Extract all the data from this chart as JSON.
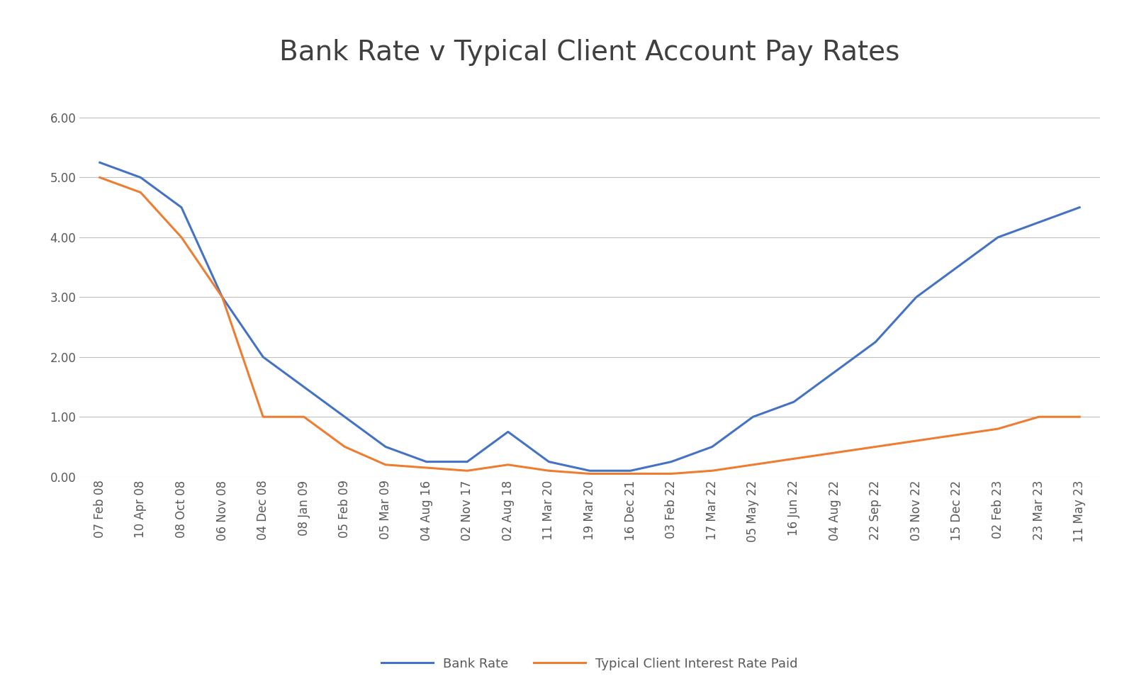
{
  "title": "Bank Rate v Typical Client Account Pay Rates",
  "x_labels": [
    "07 Feb 08",
    "10 Apr 08",
    "08 Oct 08",
    "06 Nov 08",
    "04 Dec 08",
    "08 Jan 09",
    "05 Feb 09",
    "05 Mar 09",
    "04 Aug 16",
    "02 Nov 17",
    "02 Aug 18",
    "11 Mar 20",
    "19 Mar 20",
    "16 Dec 21",
    "03 Feb 22",
    "17 Mar 22",
    "05 May 22",
    "16 Jun 22",
    "04 Aug 22",
    "22 Sep 22",
    "03 Nov 22",
    "15 Dec 22",
    "02 Feb 23",
    "23 Mar 23",
    "11 May 23"
  ],
  "bank_rate": [
    5.25,
    5.0,
    4.5,
    3.0,
    2.0,
    1.5,
    1.0,
    0.5,
    0.25,
    0.25,
    0.75,
    0.25,
    0.1,
    0.1,
    0.25,
    0.5,
    1.0,
    1.25,
    1.75,
    2.25,
    3.0,
    3.5,
    4.0,
    4.25,
    4.5
  ],
  "client_rate": [
    5.0,
    4.75,
    4.0,
    3.0,
    1.0,
    1.0,
    0.5,
    0.2,
    0.15,
    0.1,
    0.2,
    0.1,
    0.05,
    0.05,
    0.05,
    0.1,
    0.2,
    0.3,
    0.4,
    0.5,
    0.6,
    0.7,
    0.8,
    1.0,
    1.0
  ],
  "bank_rate_color": "#4472C4",
  "client_rate_color": "#ED7D31",
  "background_color": "#FFFFFF",
  "plot_bg_color": "#FFFFFF",
  "grid_color": "#BFBFBF",
  "title_color": "#404040",
  "tick_color": "#595959",
  "ylim": [
    0.0,
    6.6
  ],
  "yticks": [
    0.0,
    1.0,
    2.0,
    3.0,
    4.0,
    5.0,
    6.0
  ],
  "legend_bank_rate": "Bank Rate",
  "legend_client_rate": "Typical Client Interest Rate Paid",
  "line_width": 2.2,
  "title_fontsize": 28,
  "tick_fontsize": 12,
  "legend_fontsize": 13
}
